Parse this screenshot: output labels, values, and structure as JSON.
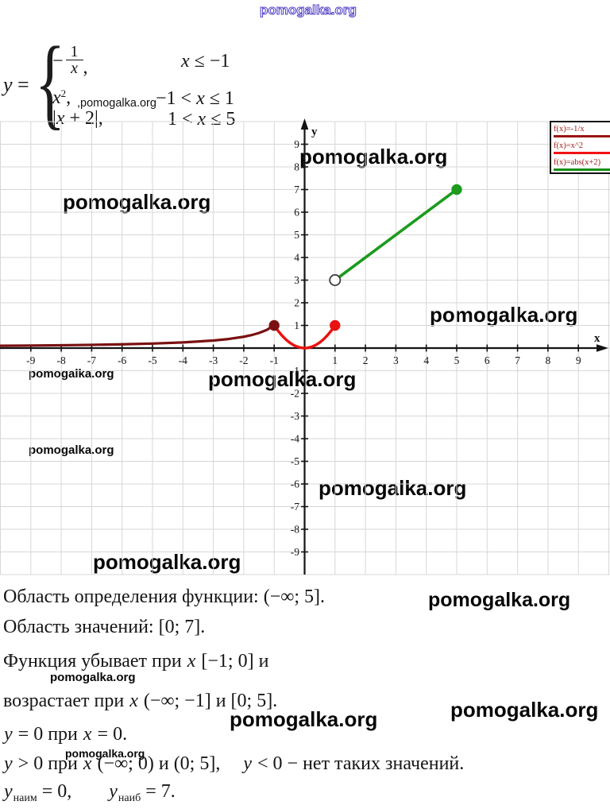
{
  "watermark": {
    "text": "pomogalka.org",
    "formula_inline": ",pomogalka.org"
  },
  "formula": {
    "lhs_var": "y",
    "equals": " =",
    "brace": "{",
    "row1": {
      "minus": "−",
      "num": "1",
      "den": "x",
      "comma": ",",
      "cond": [
        {
          "t": "x",
          "i": 1
        },
        {
          "t": " ≤ −1"
        }
      ]
    },
    "row2": {
      "base": "x",
      "sup": "2",
      "comma": ",",
      "cond": [
        {
          "t": "−1 < "
        },
        {
          "t": "x",
          "i": 1
        },
        {
          "t": " ≤ 1"
        }
      ]
    },
    "row3": {
      "expr": [
        {
          "t": "|"
        },
        {
          "t": "x",
          "i": 1
        },
        {
          "t": " + 2|,"
        }
      ],
      "cond": [
        {
          "t": "1 < "
        },
        {
          "t": "x",
          "i": 1
        },
        {
          "t": " ≤ 5"
        }
      ]
    }
  },
  "chart_data": {
    "type": "line",
    "title": "",
    "xlabel": "x",
    "ylabel": "y",
    "xlim": [
      -10,
      10
    ],
    "ylim": [
      -10,
      10
    ],
    "grid": true,
    "legend_position": "top-right",
    "x_ticks": [
      -9,
      -8,
      -7,
      -6,
      -5,
      -4,
      -3,
      -2,
      -1,
      1,
      2,
      3,
      4,
      5,
      6,
      7,
      8,
      9
    ],
    "y_ticks": [
      9,
      8,
      7,
      6,
      5,
      4,
      3,
      2,
      1,
      -1,
      -2,
      -3,
      -4,
      -5,
      -6,
      -7,
      -8,
      -9
    ],
    "series": [
      {
        "name": "f(x)=-1/x",
        "domain": "x <= -1",
        "shape": "curve",
        "color": "#7a1012",
        "width": 3.2,
        "points": [
          [
            -10.1,
            0.099
          ],
          [
            -9,
            0.111
          ],
          [
            -8,
            0.125
          ],
          [
            -7,
            0.143
          ],
          [
            -6,
            0.167
          ],
          [
            -5,
            0.2
          ],
          [
            -4,
            0.25
          ],
          [
            -3,
            0.333
          ],
          [
            -2.5,
            0.4
          ],
          [
            -2,
            0.5
          ],
          [
            -1.75,
            0.571
          ],
          [
            -1.5,
            0.667
          ],
          [
            -1.25,
            0.8
          ],
          [
            -1,
            1
          ]
        ],
        "closed_points": [
          [
            -1,
            1
          ]
        ]
      },
      {
        "name": "f(x)=x^2",
        "domain": "-1 < x <= 1",
        "shape": "parabola",
        "color": "#ea1111",
        "width": 3.4,
        "points": [
          [
            -1,
            1
          ],
          [
            0,
            0
          ],
          [
            1,
            1
          ]
        ],
        "control": [
          0,
          -1
        ],
        "closed_points": [
          [
            1,
            1
          ]
        ]
      },
      {
        "name": "f(x)=abs(x+2)",
        "domain": "1 < x <= 5",
        "shape": "segment",
        "color": "#1d9b1d",
        "width": 3.6,
        "points": [
          [
            1,
            3
          ],
          [
            5,
            7
          ]
        ],
        "open_points": [
          [
            1,
            3
          ]
        ],
        "closed_points": [
          [
            5,
            7
          ]
        ]
      }
    ],
    "legend": [
      {
        "label": "f(x)=-1/x",
        "color": "#9b1313"
      },
      {
        "label": "f(x)=x^2",
        "color": "#f21212"
      },
      {
        "label": "f(x)=abs(x+2)",
        "color": "#168c16"
      }
    ]
  },
  "solution": {
    "lines": [
      [
        {
          "t": "Область определения функции: (−∞; 5]."
        }
      ],
      [
        {
          "t": "Область значений: [0; 7]."
        }
      ],
      [
        {
          "t": "Функция убывает при "
        },
        {
          "t": "x",
          "i": 1
        },
        {
          "t": " [−1; 0] и"
        }
      ],
      [
        {
          "t": "возрастает при "
        },
        {
          "t": "x",
          "i": 1
        },
        {
          "t": " (−∞; −1] и [0; 5]."
        }
      ],
      [
        {
          "t": "y",
          "i": 1
        },
        {
          "t": " = 0 при "
        },
        {
          "t": "x",
          "i": 1
        },
        {
          "t": " = 0."
        }
      ],
      [
        {
          "t": "y",
          "i": 1
        },
        {
          "t": " > 0 при "
        },
        {
          "t": "x",
          "i": 1
        },
        {
          "t": " (−∞; 0) и (0; 5],"
        },
        {
          "t": "y",
          "i": 1,
          "gap": 1
        },
        {
          "t": " < 0 − нет таких значений."
        }
      ],
      [
        {
          "t": "y",
          "i": 1
        },
        {
          "t": "наим",
          "sub": 1
        },
        {
          "t": " = 0,"
        },
        {
          "t": "y",
          "i": 1,
          "gap": 1
        },
        {
          "t": "наиб",
          "sub": 1
        },
        {
          "t": " = 7."
        }
      ]
    ]
  }
}
